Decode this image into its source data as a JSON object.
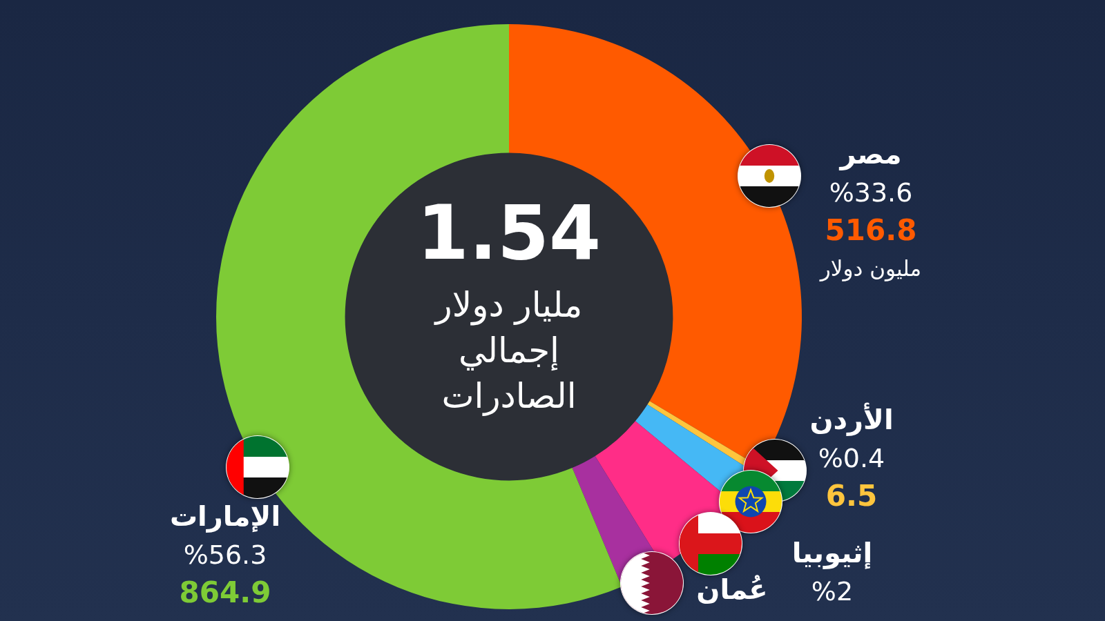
{
  "chart_data": {
    "type": "doughnut",
    "categories": [
      "مصر",
      "الأردن",
      "إثيوبيا",
      "عُمان",
      null,
      "الإمارات"
    ],
    "values": [
      33.6,
      0.4,
      2,
      5.2,
      2.5,
      56.3
    ],
    "value_labels": [
      "%33.6",
      "%0.4",
      "%2",
      null,
      null,
      "%56.3"
    ],
    "amounts": [
      516.8,
      6.5,
      null,
      null,
      null,
      864.9
    ],
    "amount_units": [
      "مليون دولار",
      null,
      null,
      null,
      null,
      null
    ],
    "colors": [
      "#ff5a00",
      "#ffc53d",
      "#45b8f5",
      "#ff2d87",
      "#a8309f",
      "#7ecb36"
    ],
    "center_text": {
      "value": 1.54,
      "lines": [
        "مليار دولار",
        "إجمالي",
        "الصادرات"
      ]
    },
    "data_labels": true
  }
}
